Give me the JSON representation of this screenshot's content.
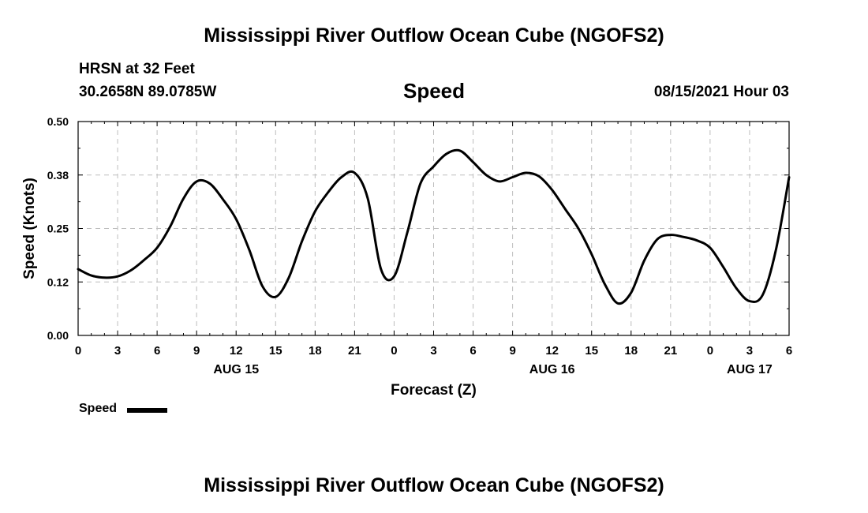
{
  "header": {
    "title_top": "Mississippi River Outflow Ocean Cube (NGOFS2)",
    "station": "HRSN at 32 Feet",
    "coords": "30.2658N  89.0785W",
    "variable": "Speed",
    "datetime": "08/15/2021 Hour 03",
    "title_bottom": "Mississippi River Outflow Ocean Cube (NGOFS2)"
  },
  "legend": {
    "label": "Speed",
    "color": "#000000"
  },
  "chart_data": {
    "type": "line",
    "title": "Speed",
    "xlabel": "Forecast (Z)",
    "ylabel": "Speed (Knots)",
    "xlim": [
      0,
      54
    ],
    "ylim": [
      0,
      0.5
    ],
    "grid": true,
    "legend_position": "bottom-left",
    "x_ticks": [
      0,
      3,
      6,
      9,
      12,
      15,
      18,
      21,
      24,
      27,
      30,
      33,
      36,
      39,
      42,
      45,
      48,
      51,
      54
    ],
    "x_tick_labels": [
      "0",
      "3",
      "6",
      "9",
      "12",
      "15",
      "18",
      "21",
      "0",
      "3",
      "6",
      "9",
      "12",
      "15",
      "18",
      "21",
      "0",
      "3",
      "6"
    ],
    "y_ticks": [
      0,
      0.125,
      0.25,
      0.375,
      0.5
    ],
    "y_tick_labels": [
      "0.00",
      "0.12",
      "0.25",
      "0.38",
      "0.50"
    ],
    "date_labels": [
      {
        "x": 12,
        "label": "AUG 15"
      },
      {
        "x": 36,
        "label": "AUG 16"
      },
      {
        "x": 51,
        "label": "AUG 17"
      }
    ],
    "series": [
      {
        "name": "Speed",
        "color": "#000000",
        "x": [
          0,
          1,
          2,
          3,
          4,
          5,
          6,
          7,
          8,
          9,
          10,
          11,
          12,
          13,
          14,
          15,
          16,
          17,
          18,
          19,
          20,
          21,
          22,
          23,
          24,
          25,
          26,
          27,
          28,
          29,
          30,
          31,
          32,
          33,
          34,
          35,
          36,
          37,
          38,
          39,
          40,
          41,
          42,
          43,
          44,
          45,
          46,
          47,
          48,
          49,
          50,
          51,
          52,
          53,
          54
        ],
        "values": [
          0.155,
          0.14,
          0.135,
          0.138,
          0.152,
          0.176,
          0.205,
          0.255,
          0.32,
          0.36,
          0.355,
          0.318,
          0.272,
          0.2,
          0.115,
          0.09,
          0.135,
          0.22,
          0.29,
          0.335,
          0.37,
          0.38,
          0.32,
          0.155,
          0.138,
          0.24,
          0.355,
          0.395,
          0.425,
          0.432,
          0.405,
          0.375,
          0.36,
          0.37,
          0.38,
          0.372,
          0.34,
          0.295,
          0.25,
          0.19,
          0.12,
          0.075,
          0.1,
          0.175,
          0.225,
          0.235,
          0.23,
          0.222,
          0.205,
          0.16,
          0.11,
          0.08,
          0.095,
          0.2,
          0.37
        ]
      }
    ]
  }
}
